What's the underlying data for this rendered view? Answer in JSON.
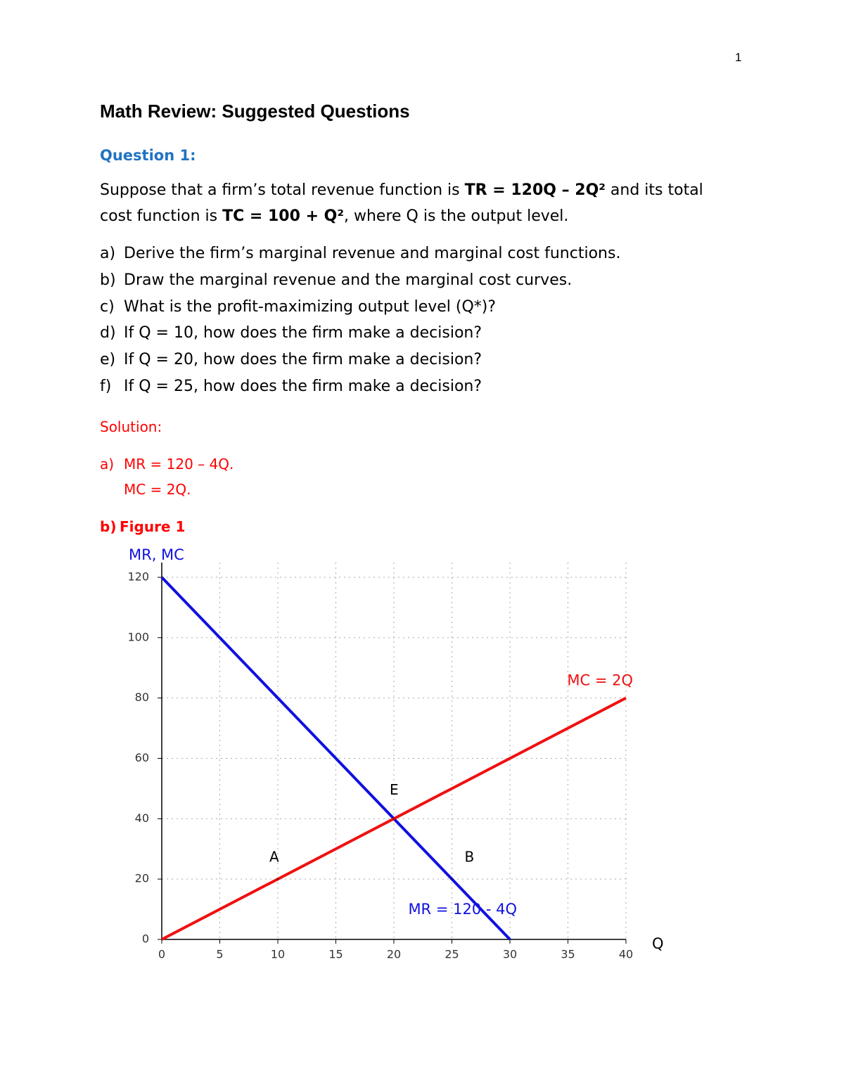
{
  "page_number": "1",
  "title": "Math Review: Suggested Questions",
  "question": {
    "heading": "Question 1:",
    "intro": [
      "Suppose that a firm’s total revenue function is ",
      "TR = 120Q – 2Q²",
      " and its total cost function is ",
      "TC = 100 + Q²",
      ", where Q is the output level."
    ],
    "items": [
      {
        "label": "a)",
        "text": "Derive the firm’s marginal revenue and marginal cost functions."
      },
      {
        "label": "b)",
        "text": "Draw the marginal revenue and the marginal cost curves."
      },
      {
        "label": "c)",
        "text": "What is the profit-maximizing output level (Q*)?"
      },
      {
        "label": "d)",
        "text": "If Q = 10, how does the firm make a decision?"
      },
      {
        "label": "e)",
        "text": "If Q = 20, how does the firm make a decision?"
      },
      {
        "label": "f)",
        "text": "If Q = 25, how does the firm make a decision?"
      }
    ]
  },
  "solution": {
    "heading": "Solution:",
    "a": {
      "label": "a)",
      "lines": [
        "MR = 120 – 4Q.",
        "MC = 2Q."
      ]
    },
    "b": {
      "label": "b)",
      "text": "Figure 1"
    }
  },
  "chart_data": {
    "type": "line",
    "y_label": "MR, MC",
    "x_label": "Q",
    "xlim": [
      0,
      40
    ],
    "ylim": [
      0,
      120
    ],
    "xticks": [
      0,
      5,
      10,
      15,
      20,
      25,
      30,
      35,
      40
    ],
    "yticks": [
      0,
      20,
      40,
      60,
      80,
      100,
      120
    ],
    "grid": true,
    "series": [
      {
        "name": "MR = 120 - 4Q",
        "color": "#1010e0",
        "x": [
          0,
          30
        ],
        "values": [
          120,
          0
        ]
      },
      {
        "name": "MC = 2Q",
        "color": "#f01010",
        "x": [
          0,
          40
        ],
        "values": [
          0,
          80
        ]
      }
    ],
    "points": [
      {
        "label": "A",
        "x": 10,
        "y": 20
      },
      {
        "label": "E",
        "x": 20,
        "y": 40
      },
      {
        "label": "B",
        "x": 25,
        "y": 20
      }
    ]
  }
}
